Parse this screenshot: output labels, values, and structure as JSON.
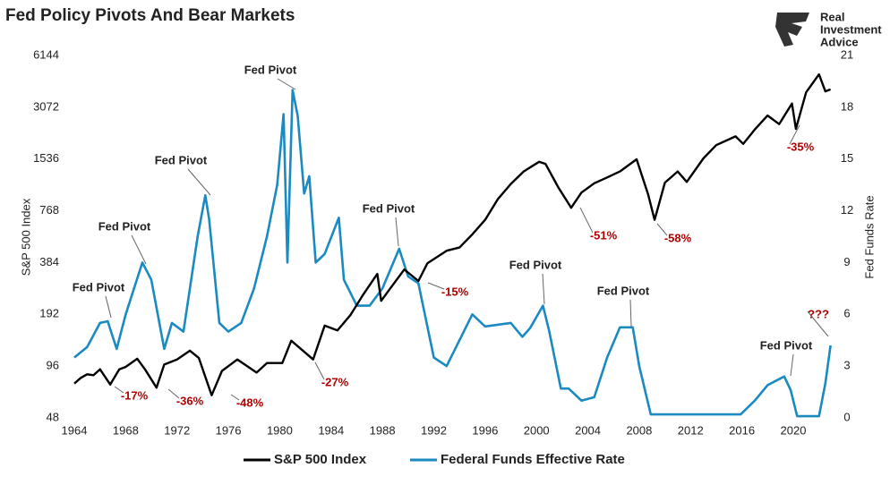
{
  "chart_data": {
    "type": "line",
    "title": "Fed Policy Pivots And Bear Markets",
    "source_lines": [
      "Real",
      "Investment",
      "Advice"
    ],
    "y_label": "S&P 500 Index",
    "y2_label": "Fed Funds Rate",
    "ylog": true,
    "ylim": [
      48,
      6144
    ],
    "yticks": [
      48,
      96,
      192,
      384,
      768,
      1536,
      3072,
      6144
    ],
    "y2lim": [
      0,
      21
    ],
    "y2ticks": [
      0,
      3,
      6,
      9,
      12,
      15,
      18,
      21
    ],
    "xlim": [
      1964,
      2023
    ],
    "xticks": [
      1964,
      1968,
      1972,
      1976,
      1980,
      1984,
      1988,
      1992,
      1996,
      2000,
      2004,
      2008,
      2012,
      2016,
      2020
    ],
    "legend": "bottom",
    "series": [
      {
        "name": "S&P 500 Index",
        "color": "#000000",
        "x": [
          1964,
          1964.5,
          1965,
          1965.5,
          1966,
          1966.8,
          1967.5,
          1968,
          1968.9,
          1969.5,
          1970.4,
          1971,
          1972,
          1973,
          1973.7,
          1974.7,
          1975.5,
          1976.7,
          1978.2,
          1979,
          1980.2,
          1980.9,
          1982.6,
          1983.5,
          1984.5,
          1985.5,
          1986.5,
          1987.6,
          1987.9,
          1988.5,
          1989.7,
          1990.8,
          1991.5,
          1993,
          1994,
          1995,
          1996,
          1997,
          1998,
          1999,
          2000.2,
          2000.7,
          2001.7,
          2002.7,
          2003.5,
          2004.5,
          2005.5,
          2006.5,
          2007.8,
          2008.7,
          2009.2,
          2010,
          2011,
          2011.7,
          2013,
          2014,
          2015.5,
          2016.1,
          2017,
          2018,
          2018.9,
          2019.9,
          2020.2,
          2021,
          2022,
          2022.5,
          2022.9
        ],
        "values": [
          76,
          82,
          86,
          85,
          92,
          75,
          92,
          95,
          106,
          92,
          72,
          98,
          105,
          118,
          107,
          65,
          90,
          105,
          88,
          100,
          100,
          135,
          105,
          165,
          155,
          190,
          250,
          330,
          230,
          265,
          350,
          300,
          380,
          450,
          470,
          560,
          680,
          900,
          1100,
          1300,
          1480,
          1440,
          1050,
          800,
          980,
          1110,
          1200,
          1300,
          1530,
          950,
          680,
          1120,
          1300,
          1130,
          1550,
          1850,
          2080,
          1880,
          2280,
          2750,
          2450,
          3230,
          2300,
          3750,
          4770,
          3800,
          3900
        ]
      },
      {
        "name": "Federal Funds Effective Rate",
        "color": "#1a8ac0",
        "axis": "y2",
        "x": [
          1964,
          1965,
          1966,
          1966.6,
          1967.3,
          1968,
          1969.3,
          1970,
          1971,
          1971.6,
          1972.5,
          1973.6,
          1974.2,
          1974.5,
          1975.3,
          1976,
          1977,
          1978,
          1979,
          1979.8,
          1980.3,
          1980.6,
          1981,
          1981.4,
          1981.9,
          1982.3,
          1982.8,
          1983.5,
          1984.6,
          1985,
          1986,
          1987,
          1988,
          1989.3,
          1990,
          1990.8,
          1992,
          1993,
          1994,
          1995,
          1996,
          1998,
          1998.9,
          1999.5,
          2000.5,
          2001,
          2001.9,
          2002.5,
          2003.5,
          2004.5,
          2005.5,
          2006.5,
          2007.5,
          2008,
          2008.9,
          2015.9,
          2017,
          2018,
          2019.3,
          2019.8,
          2020.3,
          2022,
          2022.5,
          2022.9
        ],
        "values": [
          3.5,
          4.1,
          5.5,
          5.6,
          4.0,
          6.0,
          9.0,
          8.0,
          4.0,
          5.5,
          5.0,
          10.5,
          12.9,
          11.5,
          5.5,
          5.0,
          5.5,
          7.5,
          10.5,
          13.5,
          17.6,
          9.0,
          19.0,
          17.5,
          13.0,
          14.0,
          9.0,
          9.5,
          11.6,
          8.0,
          6.5,
          6.5,
          7.5,
          9.8,
          8.2,
          7.8,
          3.5,
          3.0,
          4.5,
          6.0,
          5.3,
          5.5,
          4.7,
          5.2,
          6.5,
          5.0,
          1.7,
          1.7,
          1.0,
          1.2,
          3.5,
          5.25,
          5.25,
          3.0,
          0.2,
          0.2,
          1.0,
          1.9,
          2.4,
          1.6,
          0.1,
          0.1,
          2.0,
          4.2
        ]
      }
    ],
    "annotations": [
      "Fed Pivot",
      "Fed Pivot",
      "Fed Pivot",
      "Fed Pivot",
      "Fed Pivot",
      "Fed Pivot",
      "Fed Pivot",
      "Fed Pivot",
      "-17%",
      "-36%",
      "-48%",
      "-27%",
      "-15%",
      "-51%",
      "-58%",
      "-35%",
      "???"
    ]
  }
}
